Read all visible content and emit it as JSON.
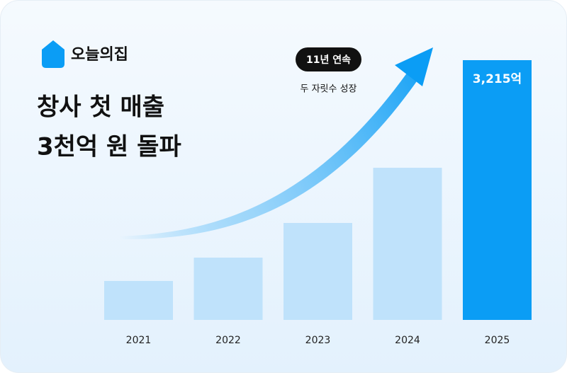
{
  "chart_data": {
    "type": "bar",
    "brand": "오늘의집",
    "title_lines": [
      "창사 첫 매출",
      "3천억 원 돌파"
    ],
    "badge": "11년 연속",
    "annotation": "두 자릿수 성장",
    "categories": [
      "2021",
      "2022",
      "2023",
      "2024",
      "2025"
    ],
    "values": [
      482,
      771,
      1200,
      1883,
      3215
    ],
    "value_labels": [
      null,
      null,
      null,
      null,
      "3,215억"
    ],
    "colors": [
      "#bfe2fb",
      "#bfe2fb",
      "#bfe2fb",
      "#bfe2fb",
      "#0b9df5"
    ]
  }
}
